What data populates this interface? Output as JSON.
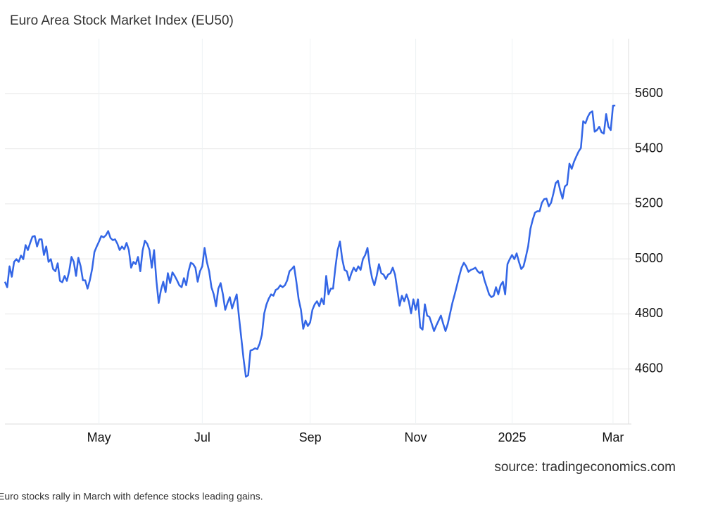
{
  "chart_data": {
    "type": "line",
    "title": "Euro Area Stock Market Index (EU50)",
    "source": "source: tradingeconomics.com",
    "caption": "Euro stocks rally in March with defence stocks leading gains.",
    "color": "#3366e6",
    "grid": true,
    "xlim": [
      0,
      273
    ],
    "xticks": [
      {
        "value": 41,
        "label": "May"
      },
      {
        "value": 86,
        "label": "Jul"
      },
      {
        "value": 133,
        "label": "Sep"
      },
      {
        "value": 179,
        "label": "Nov"
      },
      {
        "value": 221,
        "label": "2025"
      },
      {
        "value": 265,
        "label": "Mar"
      }
    ],
    "ylim": [
      4400,
      5800
    ],
    "yticks": [
      4600,
      4800,
      5000,
      5200,
      5400,
      5600
    ],
    "values": [
      4917,
      4897,
      4973,
      4935,
      4989,
      4999,
      4989,
      5012,
      4999,
      5050,
      5032,
      5058,
      5081,
      5083,
      5045,
      5071,
      5071,
      5014,
      5045,
      4989,
      4999,
      4963,
      4955,
      4984,
      4920,
      4915,
      4938,
      4920,
      4955,
      5007,
      4989,
      4938,
      5004,
      4973,
      4922,
      4922,
      4892,
      4922,
      4963,
      5025,
      5045,
      5063,
      5083,
      5078,
      5086,
      5101,
      5076,
      5068,
      5071,
      5055,
      5032,
      5045,
      5035,
      5058,
      5032,
      4968,
      4989,
      4981,
      5007,
      4955,
      5030,
      5066,
      5055,
      5032,
      4968,
      5032,
      4922,
      4840,
      4887,
      4917,
      4879,
      4948,
      4912,
      4951,
      4938,
      4922,
      4904,
      4897,
      4930,
      4904,
      4955,
      4986,
      4981,
      4968,
      4917,
      4955,
      4973,
      5040,
      4989,
      4955,
      4897,
      4871,
      4828,
      4892,
      4912,
      4871,
      4815,
      4840,
      4861,
      4820,
      4846,
      4871,
      4789,
      4713,
      4636,
      4572,
      4577,
      4667,
      4670,
      4675,
      4672,
      4692,
      4725,
      4802,
      4835,
      4856,
      4871,
      4866,
      4887,
      4892,
      4904,
      4897,
      4904,
      4922,
      4955,
      4963,
      4973,
      4917,
      4853,
      4815,
      4746,
      4776,
      4756,
      4769,
      4815,
      4835,
      4846,
      4828,
      4856,
      4835,
      4938,
      4871,
      4892,
      4892,
      4968,
      5032,
      5063,
      4999,
      4960,
      4955,
      4922,
      4948,
      4968,
      4955,
      4973,
      4960,
      4999,
      5014,
      5040,
      4973,
      4930,
      4904,
      4938,
      4981,
      4948,
      4943,
      4927,
      4943,
      4948,
      4968,
      4943,
      4887,
      4830,
      4866,
      4846,
      4871,
      4846,
      4802,
      4853,
      4815,
      4853,
      4751,
      4743,
      4835,
      4794,
      4789,
      4764,
      4738,
      4758,
      4776,
      4794,
      4764,
      4738,
      4764,
      4802,
      4840,
      4871,
      4904,
      4938,
      4968,
      4986,
      4973,
      4953,
      4960,
      4963,
      4968,
      4955,
      4948,
      4955,
      4922,
      4897,
      4871,
      4861,
      4866,
      4897,
      4871,
      4904,
      4917,
      4871,
      4981,
      4999,
      5014,
      4999,
      5020,
      4989,
      4963,
      4973,
      5007,
      5045,
      5109,
      5142,
      5168,
      5173,
      5173,
      5204,
      5217,
      5219,
      5191,
      5204,
      5237,
      5275,
      5284,
      5248,
      5219,
      5263,
      5270,
      5346,
      5327,
      5353,
      5372,
      5390,
      5403,
      5500,
      5493,
      5516,
      5531,
      5536,
      5462,
      5468,
      5480,
      5460,
      5455,
      5526,
      5480,
      5468,
      5557,
      5557
    ]
  }
}
